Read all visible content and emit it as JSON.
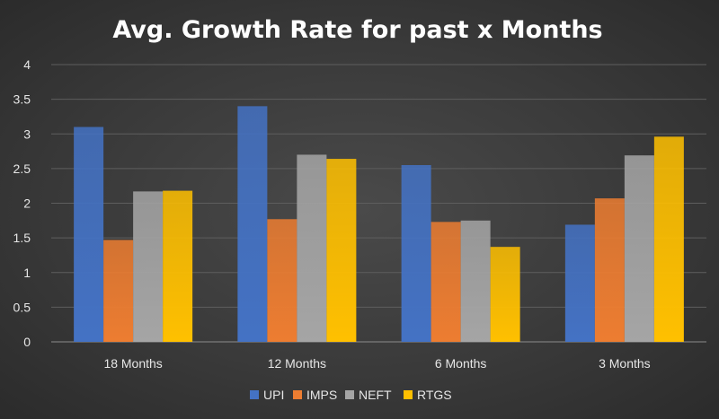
{
  "chart_data": {
    "type": "bar",
    "title": "Avg. Growth Rate for past x Months",
    "xlabel": "",
    "ylabel": "",
    "categories": [
      "18 Months",
      "12 Months",
      "6 Months",
      "3 Months"
    ],
    "series": [
      {
        "name": "UPI",
        "color": "#4472c4",
        "values": [
          3.1,
          3.4,
          2.55,
          1.69
        ]
      },
      {
        "name": "IMPS",
        "color": "#ed7d31",
        "values": [
          1.47,
          1.77,
          1.73,
          2.07
        ]
      },
      {
        "name": "NEFT",
        "color": "#a5a5a5",
        "values": [
          2.17,
          2.7,
          1.75,
          2.69
        ]
      },
      {
        "name": "RTGS",
        "color": "#ffc000",
        "values": [
          2.18,
          2.64,
          1.37,
          2.96
        ]
      }
    ],
    "ylim": [
      0,
      4
    ],
    "yticks": [
      "0",
      "0.5",
      "1",
      "1.5",
      "2",
      "2.5",
      "3",
      "3.5",
      "4"
    ],
    "grid": true,
    "legend": "bottom"
  }
}
